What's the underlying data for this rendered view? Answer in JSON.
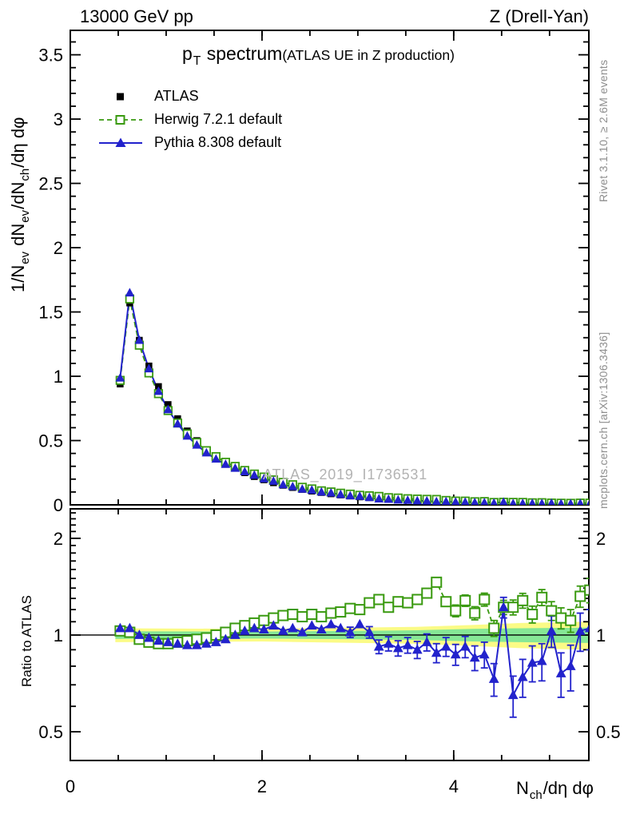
{
  "header": {
    "left": "13000 GeV pp",
    "right": "Z (Drell-Yan)"
  },
  "title": {
    "main_segments": [
      {
        "t": "p"
      },
      {
        "t": "T",
        "sub": true
      },
      {
        "t": " spectrum"
      }
    ],
    "qualifier": "(ATLAS UE in Z production)"
  },
  "legend": [
    {
      "label": "ATLAS"
    },
    {
      "label": "Herwig 7.2.1 default"
    },
    {
      "label": "Pythia 8.308 default"
    }
  ],
  "watermark": "ATLAS_2019_I1736531",
  "side_notes": {
    "top": "Rivet 3.1.10, ≥ 2.6M events",
    "bottom": "mcplots.cern.ch [arXiv:1306.3436]"
  },
  "axes": {
    "x_label_segments": [
      {
        "t": "N"
      },
      {
        "t": "ch",
        "sub": true
      },
      {
        "t": "/dη dφ"
      }
    ],
    "y_label_segments": [
      {
        "t": "1/N"
      },
      {
        "t": "ev",
        "sub": true
      },
      {
        "t": " dN"
      },
      {
        "t": "ev",
        "sub": true
      },
      {
        "t": "/dN"
      },
      {
        "t": "ch",
        "sub": true
      },
      {
        "t": "/dη dφ"
      }
    ],
    "ratio_label": "Ratio to ATLAS",
    "x_ticks": [
      {
        "v": 0,
        "label": "0"
      },
      {
        "v": 2,
        "label": "2"
      },
      {
        "v": 4,
        "label": "4"
      }
    ],
    "main_y_ticks": [
      {
        "v": 0,
        "label": "0"
      },
      {
        "v": 0.5,
        "label": "0.5"
      },
      {
        "v": 1,
        "label": "1"
      },
      {
        "v": 1.5,
        "label": "1.5"
      },
      {
        "v": 2,
        "label": "2"
      },
      {
        "v": 2.5,
        "label": "2.5"
      },
      {
        "v": 3,
        "label": "3"
      },
      {
        "v": 3.5,
        "label": "3.5"
      }
    ],
    "ratio_y_ticks": [
      {
        "v": 0.5,
        "label": "0.5"
      },
      {
        "v": 1,
        "label": "1"
      },
      {
        "v": 2,
        "label": "2"
      }
    ]
  },
  "chart_data": {
    "type": "line",
    "title": "p_T spectrum (ATLAS UE in Z production)",
    "xlabel": "N_ch/dη dφ",
    "ylabel": "1/N_ev dN_ev/dN_ch/dη dφ",
    "ratio_ylabel": "Ratio to ATLAS",
    "xlim": [
      0,
      5.41
    ],
    "ylim_main": [
      0,
      3.69
    ],
    "ylim_ratio": [
      0.407,
      2.47
    ],
    "ratio_scale": "log",
    "grid": false,
    "legend_position": "top-left",
    "x": [
      0.52,
      0.62,
      0.72,
      0.82,
      0.92,
      1.02,
      1.12,
      1.22,
      1.32,
      1.42,
      1.52,
      1.62,
      1.72,
      1.82,
      1.92,
      2.02,
      2.12,
      2.22,
      2.32,
      2.42,
      2.52,
      2.62,
      2.72,
      2.82,
      2.92,
      3.02,
      3.12,
      3.22,
      3.32,
      3.42,
      3.52,
      3.62,
      3.72,
      3.82,
      3.92,
      4.02,
      4.12,
      4.22,
      4.32,
      4.42,
      4.52,
      4.62,
      4.72,
      4.82,
      4.92,
      5.02,
      5.12,
      5.22,
      5.32,
      5.42
    ],
    "series": [
      {
        "name": "ATLAS",
        "role": "data",
        "color": "#000000",
        "marker": "filled-square",
        "line": "none",
        "values": [
          0.94,
          1.57,
          1.28,
          1.08,
          0.92,
          0.78,
          0.67,
          0.575,
          0.5,
          0.43,
          0.375,
          0.325,
          0.285,
          0.25,
          0.22,
          0.195,
          0.172,
          0.152,
          0.135,
          0.12,
          0.107,
          0.096,
          0.086,
          0.077,
          0.069,
          0.062,
          0.056,
          0.051,
          0.046,
          0.042,
          0.038,
          0.035,
          0.032,
          0.029,
          0.027,
          0.025,
          0.023,
          0.021,
          0.02,
          0.018,
          0.017,
          0.016,
          0.015,
          0.014,
          0.013,
          0.012,
          0.0115,
          0.011,
          0.0105,
          0.01
        ]
      },
      {
        "name": "Herwig 7.2.1 default",
        "role": "mc",
        "color": "#3a9a10",
        "marker": "open-square",
        "line": "dashed",
        "ratio": [
          1.03,
          1.02,
          0.97,
          0.95,
          0.94,
          0.94,
          0.95,
          0.96,
          0.97,
          0.98,
          1.0,
          1.02,
          1.05,
          1.07,
          1.09,
          1.11,
          1.13,
          1.15,
          1.16,
          1.14,
          1.16,
          1.14,
          1.17,
          1.18,
          1.21,
          1.2,
          1.26,
          1.29,
          1.22,
          1.27,
          1.26,
          1.29,
          1.35,
          1.46,
          1.27,
          1.19,
          1.28,
          1.17,
          1.29,
          1.05,
          1.22,
          1.22,
          1.28,
          1.16,
          1.31,
          1.19,
          1.13,
          1.11,
          1.32,
          1.38
        ],
        "ratio_err": [
          0.01,
          0.01,
          0.01,
          0.01,
          0.01,
          0.01,
          0.01,
          0.01,
          0.01,
          0.01,
          0.01,
          0.011,
          0.012,
          0.013,
          0.014,
          0.015,
          0.016,
          0.018,
          0.02,
          0.021,
          0.022,
          0.024,
          0.026,
          0.028,
          0.03,
          0.031,
          0.032,
          0.034,
          0.036,
          0.04,
          0.04,
          0.042,
          0.045,
          0.05,
          0.046,
          0.05,
          0.052,
          0.055,
          0.06,
          0.06,
          0.062,
          0.065,
          0.068,
          0.07,
          0.075,
          0.08,
          0.085,
          0.09,
          0.1,
          0.12
        ]
      },
      {
        "name": "Pythia 8.308 default",
        "role": "mc",
        "color": "#2222cc",
        "marker": "filled-triangle",
        "line": "solid",
        "ratio": [
          1.05,
          1.05,
          1.0,
          0.98,
          0.96,
          0.95,
          0.94,
          0.93,
          0.93,
          0.94,
          0.95,
          0.97,
          1.0,
          1.03,
          1.05,
          1.04,
          1.07,
          1.03,
          1.05,
          1.02,
          1.07,
          1.04,
          1.08,
          1.05,
          1.02,
          1.08,
          1.02,
          0.92,
          0.94,
          0.91,
          0.93,
          0.9,
          0.95,
          0.88,
          0.92,
          0.87,
          0.92,
          0.85,
          0.87,
          0.73,
          1.22,
          0.65,
          0.74,
          0.82,
          0.83,
          1.03,
          0.76,
          0.8,
          1.03,
          1.05
        ],
        "ratio_err": [
          0.012,
          0.012,
          0.012,
          0.012,
          0.012,
          0.012,
          0.012,
          0.012,
          0.012,
          0.013,
          0.013,
          0.014,
          0.015,
          0.017,
          0.018,
          0.02,
          0.022,
          0.024,
          0.026,
          0.028,
          0.03,
          0.032,
          0.034,
          0.036,
          0.038,
          0.04,
          0.042,
          0.045,
          0.048,
          0.05,
          0.052,
          0.055,
          0.058,
          0.06,
          0.062,
          0.065,
          0.07,
          0.075,
          0.08,
          0.085,
          0.09,
          0.095,
          0.1,
          0.105,
          0.11,
          0.115,
          0.12,
          0.13,
          0.14,
          0.15
        ]
      }
    ],
    "uncertainty_bands": {
      "yellow": {
        "color": "#fbfb86",
        "points": [
          {
            "x": 0.47,
            "w": 0.05
          },
          {
            "x": 2.0,
            "w": 0.045
          },
          {
            "x": 3.0,
            "w": 0.055
          },
          {
            "x": 3.6,
            "w": 0.06
          },
          {
            "x": 4.2,
            "w": 0.075
          },
          {
            "x": 4.7,
            "w": 0.09
          },
          {
            "x": 5.41,
            "w": 0.1
          }
        ]
      },
      "green": {
        "color": "#86e796",
        "points": [
          {
            "x": 0.47,
            "w": 0.027
          },
          {
            "x": 2.0,
            "w": 0.025
          },
          {
            "x": 3.0,
            "w": 0.03
          },
          {
            "x": 3.6,
            "w": 0.035
          },
          {
            "x": 4.2,
            "w": 0.045
          },
          {
            "x": 4.7,
            "w": 0.05
          },
          {
            "x": 5.41,
            "w": 0.055
          }
        ]
      }
    }
  }
}
